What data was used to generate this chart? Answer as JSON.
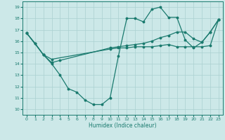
{
  "xlabel": "Humidex (Indice chaleur)",
  "xlim": [
    -0.5,
    23.5
  ],
  "ylim": [
    9.5,
    19.5
  ],
  "xticks": [
    0,
    1,
    2,
    3,
    4,
    5,
    6,
    7,
    8,
    9,
    10,
    11,
    12,
    13,
    14,
    15,
    16,
    17,
    18,
    19,
    20,
    21,
    22,
    23
  ],
  "yticks": [
    10,
    11,
    12,
    13,
    14,
    15,
    16,
    17,
    18,
    19
  ],
  "bg_color": "#cce8e8",
  "line_color": "#1a7a6e",
  "grid_color": "#aad0d0",
  "line1_x": [
    0,
    1,
    2,
    3,
    4,
    5,
    6,
    7,
    8,
    9,
    10,
    11,
    12,
    13,
    14,
    15,
    16,
    17,
    18,
    19,
    20,
    21,
    22,
    23
  ],
  "line1_y": [
    16.7,
    15.8,
    14.8,
    14.0,
    13.0,
    11.8,
    11.5,
    10.8,
    10.4,
    10.4,
    11.0,
    14.7,
    18.0,
    18.0,
    17.7,
    18.8,
    19.0,
    18.1,
    18.1,
    16.1,
    15.4,
    15.9,
    16.8,
    17.9
  ],
  "line2_x": [
    0,
    2,
    3,
    10,
    11,
    12,
    13,
    14,
    15,
    16,
    17,
    18,
    19,
    20,
    21,
    22,
    23
  ],
  "line2_y": [
    16.7,
    14.8,
    14.4,
    15.3,
    15.4,
    15.4,
    15.5,
    15.5,
    15.5,
    15.6,
    15.7,
    15.5,
    15.5,
    15.5,
    15.5,
    15.6,
    17.9
  ],
  "line3_x": [
    0,
    1,
    2,
    3,
    4,
    10,
    11,
    12,
    13,
    14,
    15,
    16,
    17,
    18,
    19,
    20,
    21,
    22,
    23
  ],
  "line3_y": [
    16.7,
    15.8,
    14.8,
    14.1,
    14.3,
    15.4,
    15.5,
    15.6,
    15.7,
    15.8,
    16.0,
    16.3,
    16.5,
    16.8,
    16.8,
    16.2,
    15.9,
    16.8,
    17.9
  ]
}
